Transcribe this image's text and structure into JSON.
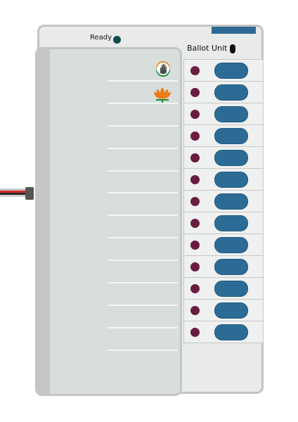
{
  "ready_label": "Ready",
  "ballot_unit_label": "Ballot Unit",
  "candidates": [
    {
      "symbol": "hand-symbol-icon"
    },
    {
      "symbol": "lotus-symbol-icon"
    },
    {},
    {},
    {},
    {},
    {},
    {},
    {},
    {},
    {},
    {},
    {}
  ],
  "colors": {
    "button": "#2c6b96",
    "candidate_led": "#6a1d40",
    "ready_led": "#0f4c50"
  }
}
